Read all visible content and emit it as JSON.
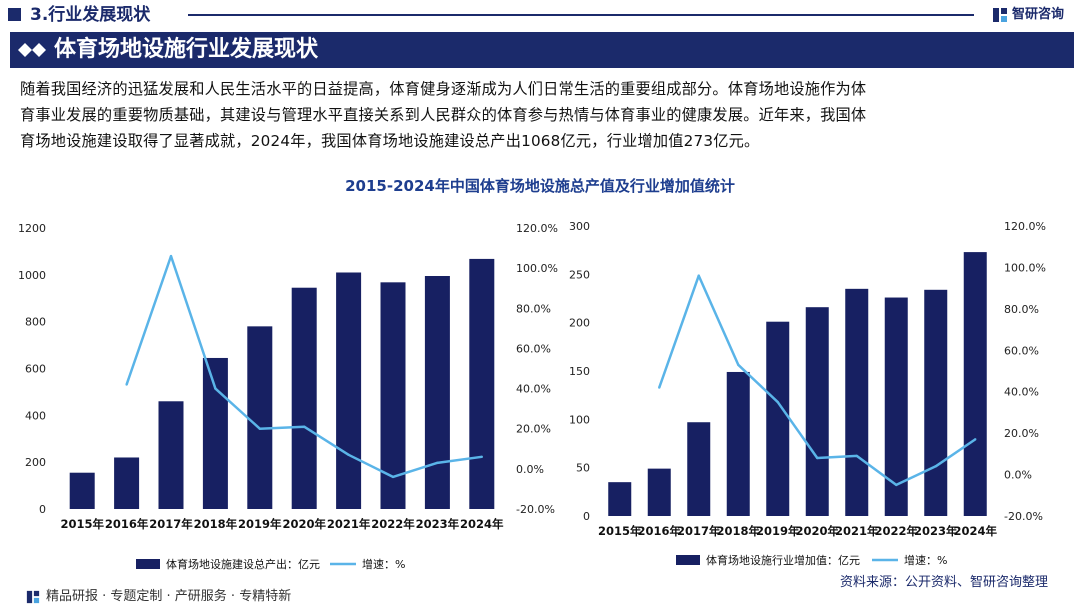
{
  "header": {
    "section_title": "3.行业发展现状",
    "brand_name": "智研咨询"
  },
  "banner": {
    "title": "体育场地设施行业发展现状"
  },
  "intro": {
    "lines": [
      "随着我国经济的迅猛发展和人民生活水平的日益提高，体育健身逐渐成为人们日常生活的重要组成部分。体育场地设施作为体",
      "育事业发展的重要物质基础，其建设与管理水平直接关系到人民群众的体育参与热情与体育事业的健康发展。近年来，我国体",
      "育场地设施建设取得了显著成就，2024年，我国体育场地设施建设总产出1068亿元，行业增加值273亿元。"
    ]
  },
  "figure_title": "2015-2024年中国体育场地设施总产值及行业增加值统计",
  "chart_data": [
    {
      "type": "bar",
      "categories": [
        "2015年",
        "2016年",
        "2017年",
        "2018年",
        "2019年",
        "2020年",
        "2021年",
        "2022年",
        "2023年",
        "2024年"
      ],
      "series": [
        {
          "name": "体育场地设施建设总产出：亿元",
          "kind": "bar",
          "axis": "left",
          "values": [
            155,
            220,
            460,
            645,
            780,
            945,
            1010,
            968,
            995,
            1068
          ]
        },
        {
          "name": "增速：%",
          "kind": "line",
          "axis": "right",
          "values": [
            null,
            42,
            106,
            40,
            20,
            21,
            7,
            -4,
            3,
            6
          ]
        }
      ],
      "y_left": {
        "min": 0,
        "max": 1200,
        "ticks": [
          "0",
          "200",
          "400",
          "600",
          "800",
          "1000",
          "1200"
        ]
      },
      "y_right": {
        "min": -20,
        "max": 120,
        "ticks": [
          "-20.0%",
          "0.0%",
          "20.0%",
          "40.0%",
          "60.0%",
          "80.0%",
          "100.0%",
          "120.0%"
        ]
      },
      "legend": {
        "bar_label": "体育场地设施建设总产出：亿元",
        "line_label": "增速：%"
      },
      "colors": {
        "bar": "#172062",
        "line": "#5ab4e8"
      }
    },
    {
      "type": "bar",
      "categories": [
        "2015年",
        "2016年",
        "2017年",
        "2018年",
        "2019年",
        "2020年",
        "2021年",
        "2022年",
        "2023年",
        "2024年"
      ],
      "series": [
        {
          "name": "体育场地设施行业增加值：亿元",
          "kind": "bar",
          "axis": "left",
          "values": [
            35,
            49,
            97,
            149,
            201,
            216,
            235,
            226,
            234,
            273
          ]
        },
        {
          "name": "增速：%",
          "kind": "line",
          "axis": "right",
          "values": [
            null,
            42,
            96,
            53,
            35,
            8,
            9,
            -5,
            4,
            17
          ]
        }
      ],
      "y_left": {
        "min": 0,
        "max": 300,
        "ticks": [
          "0",
          "50",
          "100",
          "150",
          "200",
          "250",
          "300"
        ]
      },
      "y_right": {
        "min": -20,
        "max": 120,
        "ticks": [
          "-20.0%",
          "0.0%",
          "20.0%",
          "40.0%",
          "60.0%",
          "80.0%",
          "100.0%",
          "120.0%"
        ]
      },
      "legend": {
        "bar_label": "体育场地设施行业增加值：亿元",
        "line_label": "增速：%"
      },
      "colors": {
        "bar": "#172062",
        "line": "#5ab4e8"
      }
    }
  ],
  "footer": {
    "tagline": "精品研报 · 专题定制 · 产研服务 · 专精特新",
    "source": "资料来源：公开资料、智研咨询整理"
  },
  "colors": {
    "brand": "#1b2a6b",
    "title_blue": "#1e3e8f"
  }
}
